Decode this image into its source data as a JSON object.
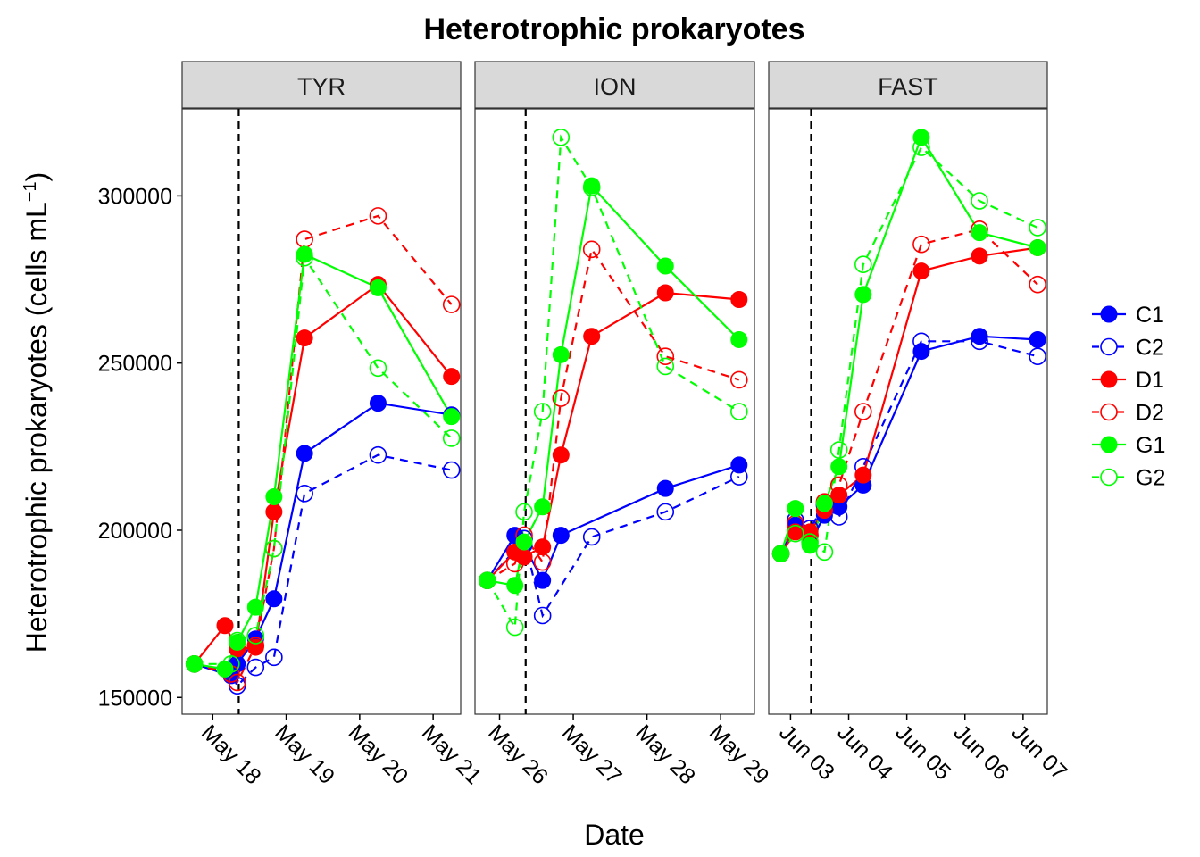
{
  "chart_data": {
    "type": "line",
    "title": "Heterotrophic prokaryotes",
    "xlabel": "Date",
    "ylabel": "Heterotrophic prokaryotes (cells mL",
    "ylabel_unit_exponent": "−1",
    "ylabel_close": ")",
    "ylim": [
      145000,
      326000
    ],
    "y_ticks": [
      150000,
      200000,
      250000,
      300000
    ],
    "y_tick_labels": [
      "150000",
      "200000",
      "250000",
      "300000"
    ],
    "grid": false,
    "legend_position": "right",
    "series": [
      {
        "name": "C1",
        "color": "#0000ff",
        "dashed": false,
        "filled": true
      },
      {
        "name": "C2",
        "color": "#0000ff",
        "dashed": true,
        "filled": false
      },
      {
        "name": "D1",
        "color": "#ff0000",
        "dashed": false,
        "filled": true
      },
      {
        "name": "D2",
        "color": "#ff0000",
        "dashed": true,
        "filled": false
      },
      {
        "name": "G1",
        "color": "#00ff00",
        "dashed": false,
        "filled": true
      },
      {
        "name": "G2",
        "color": "#00ff00",
        "dashed": true,
        "filled": false
      }
    ],
    "panels": [
      {
        "label": "TYR",
        "xlim": [
          "2017-05-17 14:00",
          "2017-05-21 09:00"
        ],
        "x_ticks": [
          "2017-05-18 00:00",
          "2017-05-19 00:00",
          "2017-05-20 00:00",
          "2017-05-21 00:00"
        ],
        "x_tick_labels": [
          "May 18",
          "May 19",
          "May 20",
          "May 21"
        ],
        "vline": "2017-05-18 08:30",
        "series": [
          {
            "name": "C1",
            "x": [
              "2017-05-17 18:00",
              "2017-05-18 06:00",
              "2017-05-18 08:00",
              "2017-05-18 14:00",
              "2017-05-18 20:00",
              "2017-05-19 06:00",
              "2017-05-20 06:00",
              "2017-05-21 06:00"
            ],
            "y": [
              160000,
              156500,
              160000,
              167500,
              179500,
              223000,
              238000,
              234500
            ]
          },
          {
            "name": "C2",
            "x": [
              "2017-05-17 18:00",
              "2017-05-18 06:00",
              "2017-05-18 08:00",
              "2017-05-18 14:00",
              "2017-05-18 20:00",
              "2017-05-19 06:00",
              "2017-05-20 06:00",
              "2017-05-21 06:00"
            ],
            "y": [
              160000,
              157500,
              153500,
              159000,
              162000,
              211000,
              222500,
              218000
            ]
          },
          {
            "name": "D1",
            "x": [
              "2017-05-17 18:00",
              "2017-05-18 04:00",
              "2017-05-18 08:00",
              "2017-05-18 14:00",
              "2017-05-18 20:00",
              "2017-05-19 06:00",
              "2017-05-20 06:00",
              "2017-05-21 06:00"
            ],
            "y": [
              160000,
              171500,
              164500,
              165000,
              205500,
              257500,
              273500,
              246000
            ]
          },
          {
            "name": "D2",
            "x": [
              "2017-05-17 18:00",
              "2017-05-18 06:00",
              "2017-05-18 08:00",
              "2017-05-18 14:00",
              "2017-05-18 20:00",
              "2017-05-19 06:00",
              "2017-05-20 06:00",
              "2017-05-21 06:00"
            ],
            "y": [
              160000,
              157000,
              154500,
              165500,
              194500,
              287000,
              294000,
              267500
            ]
          },
          {
            "name": "G1",
            "x": [
              "2017-05-17 18:00",
              "2017-05-18 04:00",
              "2017-05-18 08:00",
              "2017-05-18 14:00",
              "2017-05-18 20:00",
              "2017-05-19 06:00",
              "2017-05-20 06:00",
              "2017-05-21 06:00"
            ],
            "y": [
              160000,
              158500,
              166500,
              177000,
              210000,
              282500,
              272500,
              234000
            ]
          },
          {
            "name": "G2",
            "x": [
              "2017-05-17 18:00",
              "2017-05-18 06:00",
              "2017-05-18 08:00",
              "2017-05-18 14:00",
              "2017-05-18 20:00",
              "2017-05-19 06:00",
              "2017-05-20 06:00",
              "2017-05-21 06:00"
            ],
            "y": [
              160000,
              160000,
              167000,
              168500,
              194500,
              281500,
              248500,
              227500
            ]
          }
        ]
      },
      {
        "label": "ION",
        "xlim": [
          "2017-05-25 16:00",
          "2017-05-29 11:00"
        ],
        "x_ticks": [
          "2017-05-26 00:00",
          "2017-05-27 00:00",
          "2017-05-28 00:00",
          "2017-05-29 00:00"
        ],
        "x_tick_labels": [
          "May 26",
          "May 27",
          "May 28",
          "May 29"
        ],
        "vline": "2017-05-26 08:30",
        "series": [
          {
            "name": "C1",
            "x": [
              "2017-05-25 20:00",
              "2017-05-26 05:00",
              "2017-05-26 08:00",
              "2017-05-26 14:00",
              "2017-05-26 20:00",
              "2017-05-28 06:00",
              "2017-05-29 06:00"
            ],
            "y": [
              185000,
              198500,
              195500,
              185000,
              198500,
              212500,
              219500
            ]
          },
          {
            "name": "C2",
            "x": [
              "2017-05-25 20:00",
              "2017-05-26 05:00",
              "2017-05-26 08:00",
              "2017-05-26 14:00",
              "2017-05-27 06:00",
              "2017-05-28 06:00",
              "2017-05-29 06:00"
            ],
            "y": [
              185000,
              194000,
              197500,
              174500,
              198000,
              205500,
              216000
            ]
          },
          {
            "name": "D1",
            "x": [
              "2017-05-25 20:00",
              "2017-05-26 05:00",
              "2017-05-26 08:00",
              "2017-05-26 14:00",
              "2017-05-26 20:00",
              "2017-05-27 06:00",
              "2017-05-28 06:00",
              "2017-05-29 06:00"
            ],
            "y": [
              185000,
              193500,
              192000,
              195000,
              222500,
              258000,
              271000,
              269000
            ]
          },
          {
            "name": "D2",
            "x": [
              "2017-05-25 20:00",
              "2017-05-26 05:00",
              "2017-05-26 08:00",
              "2017-05-26 14:00",
              "2017-05-26 20:00",
              "2017-05-27 06:00",
              "2017-05-28 06:00",
              "2017-05-29 06:00"
            ],
            "y": [
              185000,
              190000,
              198500,
              190500,
              239500,
              284000,
              252000,
              245000
            ]
          },
          {
            "name": "G1",
            "x": [
              "2017-05-25 20:00",
              "2017-05-26 05:00",
              "2017-05-26 08:00",
              "2017-05-26 14:00",
              "2017-05-26 20:00",
              "2017-05-27 06:00",
              "2017-05-28 06:00",
              "2017-05-29 06:00"
            ],
            "y": [
              185000,
              183500,
              196500,
              207000,
              252500,
              303000,
              279000,
              257000
            ]
          },
          {
            "name": "G2",
            "x": [
              "2017-05-25 20:00",
              "2017-05-26 05:00",
              "2017-05-26 08:00",
              "2017-05-26 14:00",
              "2017-05-26 20:00",
              "2017-05-27 06:00",
              "2017-05-28 06:00",
              "2017-05-29 06:00"
            ],
            "y": [
              185000,
              171000,
              205500,
              235500,
              317500,
              302500,
              249000,
              235500
            ]
          }
        ]
      },
      {
        "label": "FAST",
        "xlim": [
          "2017-06-02 15:00",
          "2017-06-07 10:00"
        ],
        "x_ticks": [
          "2017-06-03 00:00",
          "2017-06-04 00:00",
          "2017-06-05 00:00",
          "2017-06-06 00:00",
          "2017-06-07 00:00"
        ],
        "x_tick_labels": [
          "Jun 03",
          "Jun 04",
          "Jun 05",
          "Jun 06",
          "Jun 07"
        ],
        "vline": "2017-06-03 08:30",
        "series": [
          {
            "name": "C1",
            "x": [
              "2017-06-02 20:00",
              "2017-06-03 02:00",
              "2017-06-03 08:00",
              "2017-06-03 14:00",
              "2017-06-03 20:00",
              "2017-06-04 06:00",
              "2017-06-05 06:00",
              "2017-06-06 06:00",
              "2017-06-07 06:00"
            ],
            "y": [
              193000,
              201500,
              196000,
              204500,
              207000,
              213500,
              253500,
              258000,
              257000
            ]
          },
          {
            "name": "C2",
            "x": [
              "2017-06-02 20:00",
              "2017-06-03 02:00",
              "2017-06-03 08:00",
              "2017-06-03 14:00",
              "2017-06-03 20:00",
              "2017-06-04 06:00",
              "2017-06-05 06:00",
              "2017-06-06 06:00",
              "2017-06-07 06:00"
            ],
            "y": [
              193000,
              203000,
              200500,
              207500,
              204000,
              219000,
              256500,
              256500,
              252000
            ]
          },
          {
            "name": "D1",
            "x": [
              "2017-06-02 20:00",
              "2017-06-03 02:00",
              "2017-06-03 08:00",
              "2017-06-03 14:00",
              "2017-06-03 20:00",
              "2017-06-04 06:00",
              "2017-06-05 06:00",
              "2017-06-06 06:00",
              "2017-06-07 06:00"
            ],
            "y": [
              193000,
              199500,
              199500,
              206000,
              210500,
              216500,
              277500,
              282000,
              284500
            ]
          },
          {
            "name": "D2",
            "x": [
              "2017-06-02 20:00",
              "2017-06-03 02:00",
              "2017-06-03 08:00",
              "2017-06-03 14:00",
              "2017-06-03 20:00",
              "2017-06-04 06:00",
              "2017-06-05 06:00",
              "2017-06-06 06:00",
              "2017-06-07 06:00"
            ],
            "y": [
              193000,
              202000,
              198500,
              208500,
              213500,
              235500,
              285500,
              290000,
              273500
            ]
          },
          {
            "name": "G1",
            "x": [
              "2017-06-02 20:00",
              "2017-06-03 02:00",
              "2017-06-03 08:00",
              "2017-06-03 14:00",
              "2017-06-03 20:00",
              "2017-06-04 06:00",
              "2017-06-05 06:00",
              "2017-06-06 06:00",
              "2017-06-07 06:00"
            ],
            "y": [
              193000,
              206500,
              195500,
              208000,
              219000,
              270500,
              317500,
              289000,
              284500
            ]
          },
          {
            "name": "G2",
            "x": [
              "2017-06-02 20:00",
              "2017-06-03 02:00",
              "2017-06-03 08:00",
              "2017-06-03 14:00",
              "2017-06-03 20:00",
              "2017-06-04 06:00",
              "2017-06-05 06:00",
              "2017-06-06 06:00",
              "2017-06-07 06:00"
            ],
            "y": [
              193000,
              199000,
              196500,
              193500,
              224000,
              279500,
              314500,
              298500,
              290500
            ]
          }
        ]
      }
    ]
  }
}
